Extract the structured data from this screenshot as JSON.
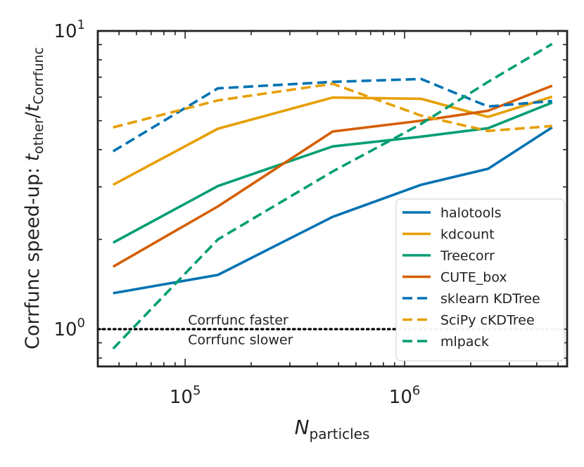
{
  "chart_data": {
    "type": "line",
    "xlabel": {
      "base": "N",
      "sub": "particles"
    },
    "ylabel": {
      "prefix": "Corrfunc speed-up: ",
      "num_base": "t",
      "num_sub": "other",
      "sep": "/",
      "den_base": "t",
      "den_sub": "Corrfunc"
    },
    "x_scale": "log",
    "y_scale": "log",
    "xlim": [
      40000,
      5500000
    ],
    "ylim": [
      0.75,
      10
    ],
    "x_tick_labels": [
      {
        "value": 100000,
        "base": "10",
        "exp": "5"
      },
      {
        "value": 1000000,
        "base": "10",
        "exp": "6"
      }
    ],
    "y_tick_labels": [
      {
        "value": 1,
        "base": "10",
        "exp": "0"
      },
      {
        "value": 10,
        "base": "10",
        "exp": "1"
      }
    ],
    "grid": false,
    "legend_position": "lower right",
    "x": [
      47000,
      141000,
      470000,
      1190000,
      2400000,
      4700000
    ],
    "series": [
      {
        "name": "halotools",
        "color": "#0072B2",
        "dash": "solid",
        "values": [
          1.32,
          1.52,
          2.38,
          3.05,
          3.45,
          4.75
        ]
      },
      {
        "name": "kdcount",
        "color": "#E69F00",
        "dash": "solid",
        "values": [
          3.05,
          4.7,
          5.98,
          5.92,
          5.15,
          6.02
        ]
      },
      {
        "name": "Treecorr",
        "color": "#009E73",
        "dash": "solid",
        "values": [
          1.95,
          3.02,
          4.1,
          4.42,
          4.72,
          5.75
        ]
      },
      {
        "name": "CUTE_box",
        "color": "#D55E00",
        "dash": "solid",
        "values": [
          1.62,
          2.58,
          4.6,
          5.0,
          5.4,
          6.55
        ]
      },
      {
        "name": "sklearn KDTree",
        "color": "#0072B2",
        "dash": "dashed",
        "values": [
          3.95,
          6.42,
          6.75,
          6.9,
          5.58,
          5.82
        ]
      },
      {
        "name": "SciPy cKDTree",
        "color": "#E69F00",
        "dash": "dashed",
        "values": [
          4.75,
          5.85,
          6.65,
          5.2,
          4.62,
          4.8
        ]
      },
      {
        "name": "mlpack",
        "color": "#009E73",
        "dash": "dashed",
        "values": [
          0.86,
          2.0,
          3.38,
          4.88,
          6.75,
          9.05
        ]
      }
    ],
    "reference_line": {
      "y": 1,
      "style": "dotted",
      "color": "#000000"
    },
    "annotations": [
      {
        "text": "Corrfunc faster",
        "x": 100000,
        "y": 1.075
      },
      {
        "text": "Corrfunc slower",
        "x": 100000,
        "y": 0.925
      }
    ]
  }
}
